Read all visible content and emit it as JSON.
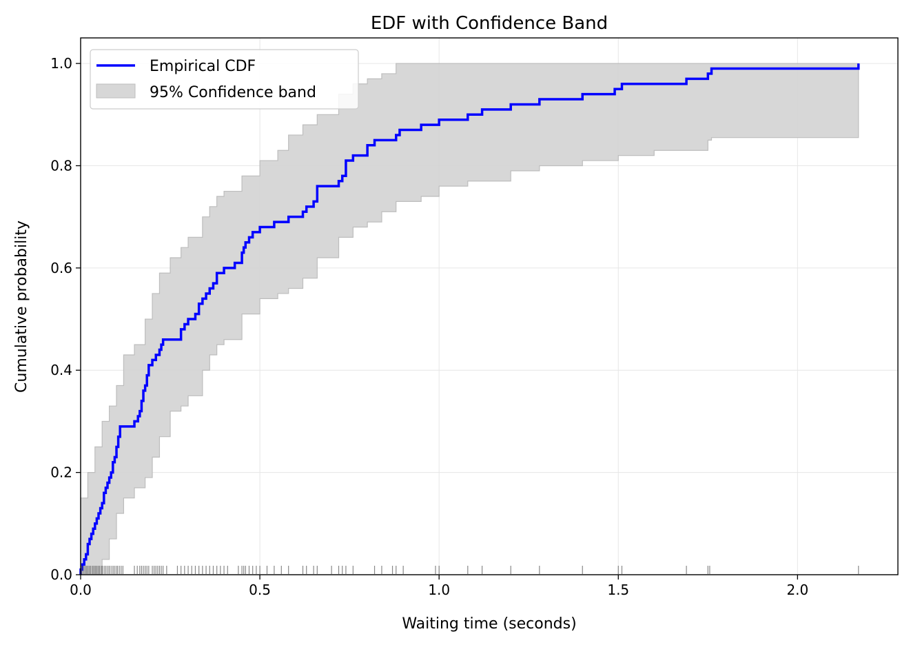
{
  "chart_data": {
    "type": "line",
    "title": "EDF with Confidence Band",
    "xlabel": "Waiting time (seconds)",
    "ylabel": "Cumulative probability",
    "xlim": [
      0.0,
      2.28
    ],
    "ylim": [
      0.0,
      1.05
    ],
    "xticks": [
      "0.0",
      "0.5",
      "1.0",
      "1.5",
      "2.0"
    ],
    "yticks": [
      "0.0",
      "0.2",
      "0.4",
      "0.6",
      "0.8",
      "1.0"
    ],
    "grid": true,
    "legend_placement": "upper-left",
    "series": [
      {
        "name": "Empirical CDF",
        "color": "#0000ff",
        "style": "step",
        "x": [
          0.0,
          0.005,
          0.01,
          0.015,
          0.02,
          0.025,
          0.03,
          0.035,
          0.04,
          0.045,
          0.05,
          0.055,
          0.06,
          0.065,
          0.07,
          0.075,
          0.08,
          0.085,
          0.09,
          0.095,
          0.1,
          0.105,
          0.11,
          0.12,
          0.15,
          0.16,
          0.165,
          0.17,
          0.175,
          0.18,
          0.185,
          0.19,
          0.2,
          0.21,
          0.22,
          0.225,
          0.23,
          0.24,
          0.28,
          0.29,
          0.3,
          0.32,
          0.33,
          0.34,
          0.35,
          0.36,
          0.37,
          0.38,
          0.4,
          0.41,
          0.43,
          0.45,
          0.455,
          0.46,
          0.47,
          0.48,
          0.5,
          0.54,
          0.58,
          0.62,
          0.63,
          0.65,
          0.66,
          0.7,
          0.72,
          0.73,
          0.74,
          0.76,
          0.8,
          0.82,
          0.84,
          0.88,
          0.89,
          0.9,
          0.95,
          0.99,
          1.0,
          1.08,
          1.12,
          1.2,
          1.28,
          1.4,
          1.49,
          1.51,
          1.69,
          1.75,
          1.76,
          2.17
        ],
        "y": [
          0.01,
          0.02,
          0.03,
          0.04,
          0.06,
          0.07,
          0.08,
          0.09,
          0.1,
          0.11,
          0.12,
          0.13,
          0.14,
          0.16,
          0.17,
          0.18,
          0.19,
          0.2,
          0.22,
          0.23,
          0.25,
          0.27,
          0.29,
          0.29,
          0.3,
          0.31,
          0.32,
          0.34,
          0.36,
          0.37,
          0.39,
          0.41,
          0.42,
          0.43,
          0.44,
          0.45,
          0.46,
          0.46,
          0.48,
          0.49,
          0.5,
          0.51,
          0.53,
          0.54,
          0.55,
          0.56,
          0.57,
          0.59,
          0.6,
          0.6,
          0.61,
          0.63,
          0.64,
          0.65,
          0.66,
          0.67,
          0.68,
          0.69,
          0.7,
          0.71,
          0.72,
          0.73,
          0.76,
          0.76,
          0.77,
          0.78,
          0.81,
          0.82,
          0.84,
          0.85,
          0.85,
          0.86,
          0.87,
          0.87,
          0.88,
          0.88,
          0.89,
          0.9,
          0.91,
          0.92,
          0.93,
          0.94,
          0.95,
          0.96,
          0.97,
          0.98,
          0.99,
          1.0
        ]
      },
      {
        "name": "95% Confidence band",
        "type": "area",
        "color": "#d3d3d3",
        "style": "step-band",
        "x": [
          0.0,
          0.02,
          0.04,
          0.06,
          0.08,
          0.1,
          0.12,
          0.15,
          0.18,
          0.2,
          0.22,
          0.25,
          0.28,
          0.3,
          0.34,
          0.36,
          0.38,
          0.4,
          0.45,
          0.5,
          0.55,
          0.58,
          0.62,
          0.66,
          0.72,
          0.76,
          0.8,
          0.84,
          0.88,
          0.95,
          1.0,
          1.08,
          1.2,
          1.28,
          1.4,
          1.5,
          1.6,
          1.75,
          1.76,
          2.17
        ],
        "lower": [
          0.0,
          0.0,
          0.0,
          0.03,
          0.07,
          0.12,
          0.15,
          0.17,
          0.19,
          0.23,
          0.27,
          0.32,
          0.33,
          0.35,
          0.4,
          0.43,
          0.45,
          0.46,
          0.51,
          0.54,
          0.55,
          0.56,
          0.58,
          0.62,
          0.66,
          0.68,
          0.69,
          0.71,
          0.73,
          0.74,
          0.76,
          0.77,
          0.79,
          0.8,
          0.81,
          0.82,
          0.83,
          0.85,
          0.855,
          0.855
        ],
        "upper": [
          0.15,
          0.2,
          0.25,
          0.3,
          0.33,
          0.37,
          0.43,
          0.45,
          0.5,
          0.55,
          0.59,
          0.62,
          0.64,
          0.66,
          0.7,
          0.72,
          0.74,
          0.75,
          0.78,
          0.81,
          0.83,
          0.86,
          0.88,
          0.9,
          0.94,
          0.96,
          0.97,
          0.98,
          1.0,
          1.0,
          1.0,
          1.0,
          1.0,
          1.0,
          1.0,
          1.0,
          1.0,
          1.0,
          1.0,
          1.0
        ]
      }
    ],
    "rug": {
      "color": "#555555",
      "x": [
        0.003,
        0.007,
        0.012,
        0.016,
        0.02,
        0.024,
        0.028,
        0.033,
        0.037,
        0.041,
        0.045,
        0.049,
        0.053,
        0.058,
        0.062,
        0.067,
        0.071,
        0.076,
        0.08,
        0.085,
        0.09,
        0.094,
        0.099,
        0.103,
        0.108,
        0.113,
        0.118,
        0.15,
        0.158,
        0.165,
        0.17,
        0.175,
        0.18,
        0.185,
        0.19,
        0.2,
        0.205,
        0.21,
        0.215,
        0.22,
        0.225,
        0.23,
        0.24,
        0.27,
        0.28,
        0.29,
        0.3,
        0.31,
        0.32,
        0.33,
        0.34,
        0.35,
        0.36,
        0.37,
        0.38,
        0.39,
        0.4,
        0.41,
        0.44,
        0.45,
        0.455,
        0.46,
        0.47,
        0.48,
        0.49,
        0.5,
        0.52,
        0.54,
        0.56,
        0.58,
        0.62,
        0.63,
        0.65,
        0.66,
        0.7,
        0.72,
        0.73,
        0.74,
        0.76,
        0.82,
        0.84,
        0.87,
        0.88,
        0.9,
        0.99,
        1.0,
        1.08,
        1.12,
        1.2,
        1.28,
        1.4,
        1.5,
        1.51,
        1.69,
        1.75,
        1.755,
        2.17
      ]
    }
  }
}
